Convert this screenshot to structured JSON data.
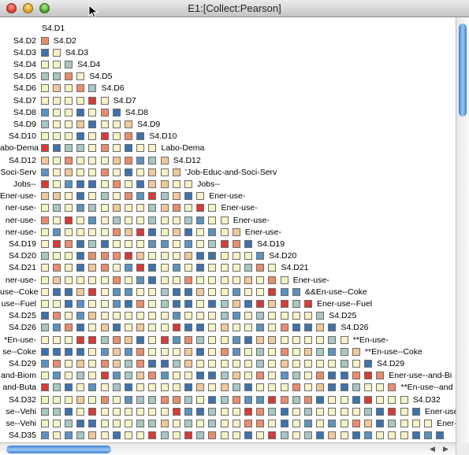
{
  "window": {
    "title": "E1:[Collect:Pearson]"
  },
  "rows": [
    "S4.D1",
    "S4.D2",
    "S4.D3",
    "S4.D4",
    "S4.D5",
    "S4.D6",
    "S4.D7",
    "S4.D8",
    "S4.D9",
    "S4.D10",
    "Labo-Dema",
    "S4.D12",
    "Soci-Serv",
    "Jobs--",
    "Ener-use-",
    "Ener-use-",
    "Ener-use-",
    "Ener-use-",
    "S4.D19",
    "S4.D20",
    "S4.D21",
    "Ener-use-",
    "Coke",
    "Fuel",
    "S4.D25",
    "S4.D26",
    "En-use-",
    "Coke",
    "S4.D29",
    "and-Biom",
    "and-Buta",
    "S4.D32",
    "se--Vehi",
    "se--Vehi",
    "S4.D35"
  ],
  "left_labels": [
    "S4.D2",
    "S4.D3",
    "S4.D4",
    "S4.D5",
    "S4.D6",
    "S4.D7",
    "S4.D8",
    "S4.D9",
    "S4.D10",
    "abo-Dema",
    "S4.D12",
    "Soci-Serv",
    "Jobs--",
    "Ener-use-",
    "ner-use-",
    "ner-use-",
    "ner-use-",
    "S4.D19",
    "S4.D20",
    "S4.D21",
    "ner-use-",
    "use--Coke",
    "use--Fuel",
    "S4.D25",
    "S4.D26",
    "*En-use-",
    "se--Coke",
    "S4.D29",
    "and-Biom",
    "and-Buta",
    "S4.D32",
    "se--Vehi",
    "se--Vehi",
    "S4.D35"
  ],
  "diag_labels": [
    "S4.D1",
    "S4.D2",
    "S4.D3",
    "S4.D4",
    "S4.D5",
    "S4.D6",
    "S4.D7",
    "S4.D8",
    "S4.D9",
    "S4.D10",
    "Labo-Dema",
    "S4.D12",
    "'Job-Educ-and-Soci-Serv",
    "Jobs--",
    "Ener-use-",
    "Ener-use-",
    "Ener-use-",
    "Ener-use-",
    "S4.D19",
    "S4.D20",
    "S4.D21",
    "Ener-use-",
    "&&En-use--Coke",
    "Ener-use--Fuel",
    "S4.D25",
    "S4.D26",
    "**En-use-",
    "**En-use--Coke",
    "S4.D29",
    "Ener-use--and-Bi",
    "**En-use--and",
    "S4.D32",
    "Ener-use-",
    "Ener-u",
    ""
  ],
  "palette": {
    "strong_neg": "#3d73ad",
    "neg": "#5b93c0",
    "weak_neg": "#a7c7c3",
    "neutral": "#f6f3c4",
    "weak_pos": "#f0c89a",
    "pos": "#e98c6e",
    "strong_pos": "#d43c36"
  }
}
